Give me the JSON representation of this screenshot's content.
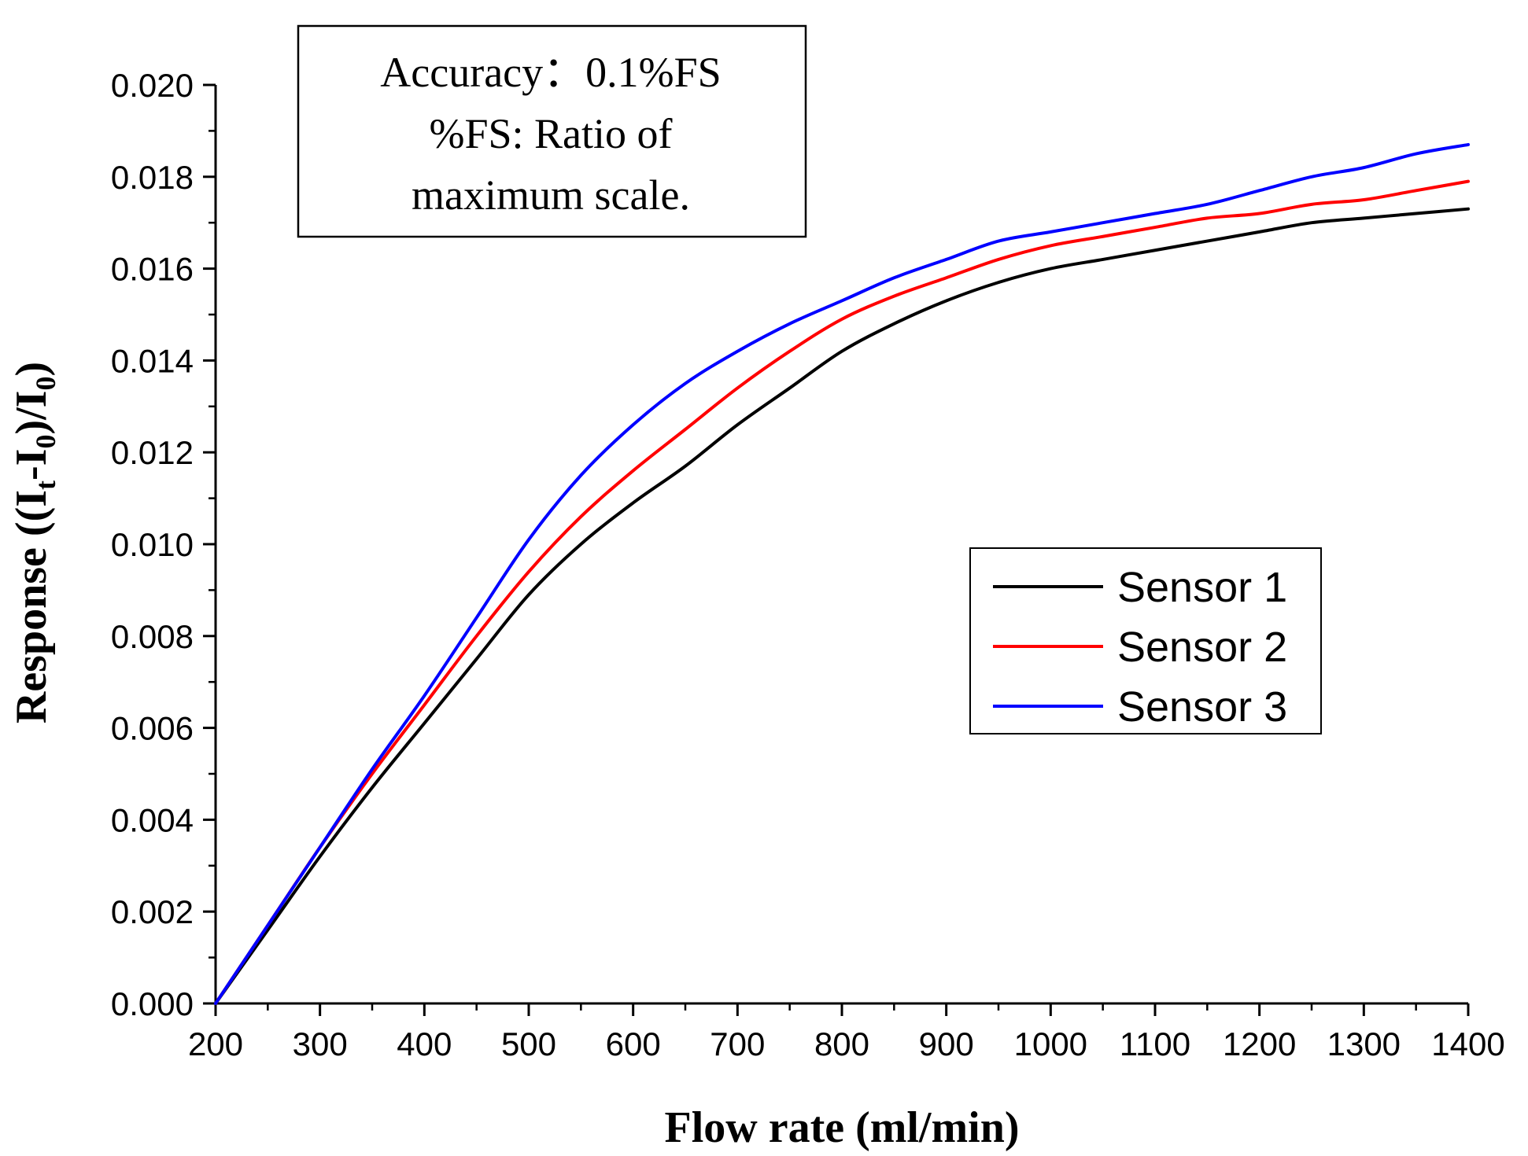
{
  "chart_data": {
    "type": "line",
    "title": "",
    "xlabel": "Flow rate (ml/min)",
    "ylabel": {
      "prefix": "Response ((I",
      "sub1": "t",
      "mid": "-I",
      "sub2": "0",
      "mid2": ")/I",
      "sub3": "0",
      "suffix": ")"
    },
    "xlim": [
      200,
      1400
    ],
    "ylim": [
      0,
      0.02
    ],
    "x_ticks": [
      "200",
      "300",
      "400",
      "500",
      "600",
      "700",
      "800",
      "900",
      "1000",
      "1100",
      "1200",
      "1300",
      "1400"
    ],
    "y_ticks": [
      "0.000",
      "0.002",
      "0.004",
      "0.006",
      "0.008",
      "0.010",
      "0.012",
      "0.014",
      "0.016",
      "0.018",
      "0.020"
    ],
    "x_tick_values": [
      200,
      300,
      400,
      500,
      600,
      700,
      800,
      900,
      1000,
      1100,
      1200,
      1300,
      1400
    ],
    "y_tick_values": [
      0,
      0.002,
      0.004,
      0.006,
      0.008,
      0.01,
      0.012,
      0.014,
      0.016,
      0.018,
      0.02
    ],
    "x": [
      200,
      250,
      300,
      350,
      400,
      450,
      500,
      550,
      600,
      650,
      700,
      750,
      800,
      850,
      900,
      950,
      1000,
      1050,
      1100,
      1150,
      1200,
      1250,
      1300,
      1350,
      1400
    ],
    "series": [
      {
        "name": "Sensor 1",
        "color": "#000000",
        "values": [
          0,
          0.0016,
          0.0032,
          0.0047,
          0.0061,
          0.0075,
          0.0089,
          0.01,
          0.0109,
          0.0117,
          0.0126,
          0.0134,
          0.0142,
          0.0148,
          0.0153,
          0.0157,
          0.016,
          0.0162,
          0.0164,
          0.0166,
          0.0168,
          0.017,
          0.0171,
          0.0172,
          0.0173
        ]
      },
      {
        "name": "Sensor 2",
        "color": "#ff0000",
        "values": [
          0,
          0.0017,
          0.0034,
          0.005,
          0.0065,
          0.008,
          0.0094,
          0.0106,
          0.0116,
          0.0125,
          0.0134,
          0.0142,
          0.0149,
          0.0154,
          0.0158,
          0.0162,
          0.0165,
          0.0167,
          0.0169,
          0.0171,
          0.0172,
          0.0174,
          0.0175,
          0.0177,
          0.0179
        ]
      },
      {
        "name": "Sensor 3",
        "color": "#0000ff",
        "values": [
          0,
          0.0017,
          0.0034,
          0.0051,
          0.0067,
          0.0084,
          0.0101,
          0.0115,
          0.0126,
          0.0135,
          0.0142,
          0.0148,
          0.0153,
          0.0158,
          0.0162,
          0.0166,
          0.0168,
          0.017,
          0.0172,
          0.0174,
          0.0177,
          0.018,
          0.0182,
          0.0185,
          0.0187
        ]
      }
    ],
    "annotation": {
      "lines": [
        "Accuracy：0.1%FS",
        "%FS: Ratio of",
        "maximum scale."
      ],
      "position": "top-left"
    },
    "legend_position": "right"
  }
}
